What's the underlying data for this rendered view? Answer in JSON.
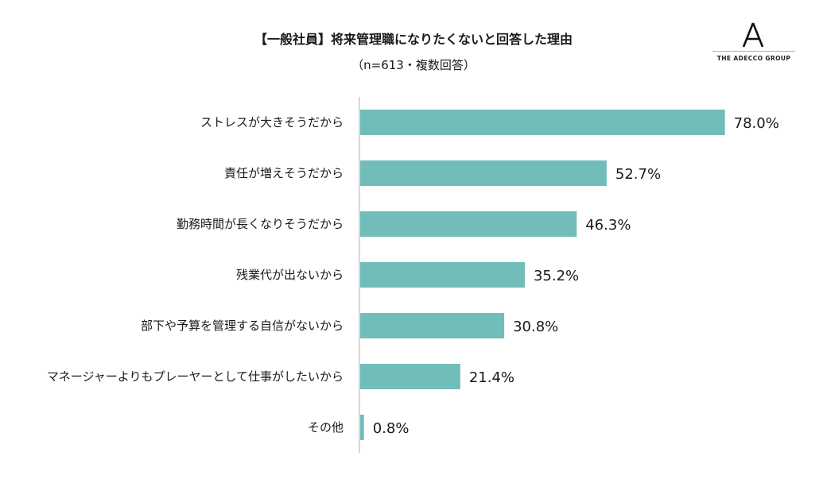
{
  "title": "【一般社員】将来管理職になりたくないと回答した理由",
  "subtitle": "（n=613・複数回答）",
  "logo": {
    "text": "THE ADECCO GROUP"
  },
  "colors": {
    "bar": "#70bdb9",
    "axis": "#c8c8c8"
  },
  "chart_data": {
    "type": "bar",
    "orientation": "horizontal",
    "categories": [
      "ストレスが大きそうだから",
      "責任が増えそうだから",
      "勤務時間が長くなりそうだから",
      "残業代が出ないから",
      "部下や予算を管理する自信がないから",
      "マネージャーよりもプレーヤーとして仕事がしたいから",
      "その他"
    ],
    "values": [
      78.0,
      52.7,
      46.3,
      35.2,
      30.8,
      21.4,
      0.8
    ],
    "value_labels": [
      "78.0%",
      "52.7%",
      "46.3%",
      "35.2%",
      "30.8%",
      "21.4%",
      "0.8%"
    ],
    "xlim": [
      0,
      100
    ],
    "grid": false,
    "legend": "none"
  }
}
